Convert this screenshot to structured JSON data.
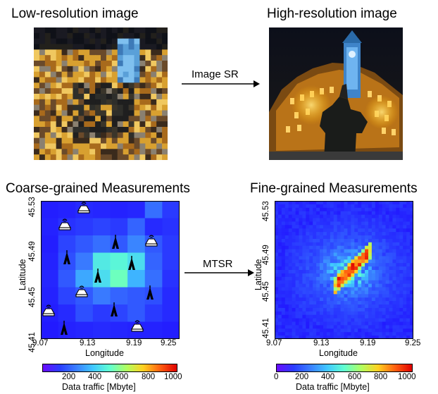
{
  "top": {
    "left_title": "Low-resolution image",
    "right_title": "High-resolution image",
    "arrow_label": "Image SR"
  },
  "bottom": {
    "left_title": "Coarse-grained  Measurements",
    "right_title": "Fine-grained Measurements",
    "arrow_label": "MTSR"
  },
  "left_map": {
    "x_ticks": [
      "9.07",
      "9.13",
      "9.19",
      "9.25"
    ],
    "y_ticks": [
      "45.53",
      "45.49",
      "45.45",
      "45.41"
    ],
    "xlabel": "Longitude",
    "ylabel": "Latitude",
    "colorbar_ticks": [
      "200",
      "400",
      "600",
      "800",
      "1000"
    ],
    "colorbar_label": "Data traffic [Mbyte]"
  },
  "right_map": {
    "x_ticks": [
      "9.07",
      "9.13",
      "9.19",
      "9.25"
    ],
    "y_ticks": [
      "45.53",
      "45.49",
      "45.45",
      "45.41"
    ],
    "xlabel": "Longitude",
    "ylabel": "Latitude",
    "colorbar_ticks": [
      "0",
      "200",
      "400",
      "600",
      "800",
      "1000"
    ],
    "colorbar_label": "Data traffic [Mbyte]"
  },
  "icons": {
    "tower": "cell-tower-icon",
    "router": "wireless-router-icon"
  },
  "colors": {
    "colormap": [
      "#1e0aff",
      "#2a3cff",
      "#3a7fff",
      "#40c8ff",
      "#60ffd0",
      "#b0ff60",
      "#ffd020",
      "#ff6010",
      "#e00000"
    ]
  }
}
